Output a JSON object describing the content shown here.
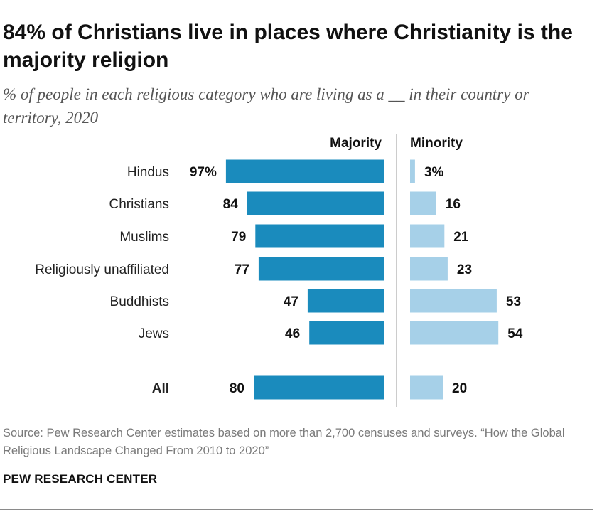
{
  "title": "84% of Christians live in places where Christianity is the majority religion",
  "subtitle": "% of people in each religious category who are living as a __ in their country or territory, 2020",
  "chart_data": {
    "type": "bar",
    "orientation": "horizontal-diverging",
    "categories": [
      "Hindus",
      "Christians",
      "Muslims",
      "Religiously unaffiliated",
      "Buddhists",
      "Jews",
      "All"
    ],
    "series": [
      {
        "name": "Majority",
        "color": "#1a8bbd",
        "values": [
          97,
          84,
          79,
          77,
          47,
          46,
          80
        ],
        "labels": [
          "97%",
          "84",
          "79",
          "77",
          "47",
          "46",
          "80"
        ]
      },
      {
        "name": "Minority",
        "color": "#a6d0e8",
        "values": [
          3,
          16,
          21,
          23,
          53,
          54,
          20
        ],
        "labels": [
          "3%",
          "16",
          "21",
          "23",
          "53",
          "54",
          "20"
        ]
      }
    ],
    "unit": "%",
    "xlim": [
      0,
      100
    ]
  },
  "source": "Source: Pew Research Center estimates based on more than 2,700 censuses and surveys. “How the Global Religious Landscape Changed From 2010 to 2020”",
  "brand": "PEW RESEARCH CENTER"
}
